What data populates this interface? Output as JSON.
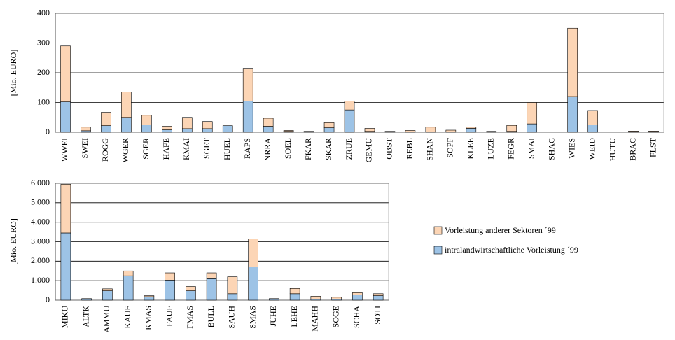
{
  "chart_data": [
    {
      "type": "stacked_bar",
      "ylabel": "[Mio. EURO]",
      "categories": [
        "WWEI",
        "SWEI",
        "ROGG",
        "WGER",
        "SGER",
        "HAFE",
        "KMAI",
        "SGET",
        "HUEL",
        "RAPS",
        "NRRA",
        "SOEL",
        "FKAR",
        "SKAR",
        "ZRUE",
        "GEMU",
        "OBST",
        "REBL",
        "SHAN",
        "SOPF",
        "KLEE",
        "LUZE",
        "FEGR",
        "SMAI",
        "SHAC",
        "WIES",
        "WEID",
        "HUTU",
        "BRAC",
        "FLST"
      ],
      "series": [
        {
          "color": "#9dc3e6",
          "values": [
            102,
            5,
            22,
            50,
            25,
            8,
            12,
            12,
            22,
            105,
            20,
            3,
            2,
            15,
            75,
            3,
            1,
            1,
            1,
            1,
            13,
            2,
            3,
            28,
            0,
            120,
            25,
            0,
            2,
            2
          ]
        },
        {
          "color": "#fcd5b5",
          "values": [
            188,
            12,
            45,
            85,
            32,
            12,
            38,
            24,
            0,
            110,
            27,
            3,
            1,
            17,
            30,
            10,
            2,
            5,
            16,
            6,
            4,
            1,
            20,
            72,
            0,
            230,
            48,
            0,
            2,
            2
          ]
        }
      ],
      "ylim": [
        0,
        400
      ],
      "yticks": [
        0,
        100,
        200,
        300,
        400
      ],
      "grid": true
    },
    {
      "type": "stacked_bar",
      "ylabel": "[Mio. EURO]",
      "categories": [
        "MIKU",
        "ALTK",
        "AMMU",
        "KAUF",
        "KMAS",
        "FAUF",
        "FMAS",
        "BULL",
        "SAUH",
        "SMAS",
        "JUHE",
        "LEHE",
        "MAHH",
        "SOGE",
        "SCHA",
        "SOTI"
      ],
      "series": [
        {
          "name": "intralandwirtschaftliche Vorleistung ´99",
          "color": "#9dc3e6",
          "values": [
            3450,
            50,
            480,
            1250,
            180,
            1030,
            480,
            1100,
            330,
            1700,
            50,
            330,
            60,
            50,
            270,
            230
          ]
        },
        {
          "name": "Vorleistung anderer Sektoren ´99",
          "color": "#fcd5b5",
          "values": [
            2500,
            30,
            100,
            250,
            50,
            370,
            220,
            300,
            870,
            1450,
            30,
            270,
            140,
            100,
            110,
            100
          ]
        }
      ],
      "ylim": [
        0,
        6000
      ],
      "yticks": [
        0,
        {
          "value": 1000,
          "label": "1.000"
        },
        {
          "value": 2000,
          "label": "2.000"
        },
        {
          "value": 3000,
          "label": "3.000"
        },
        {
          "value": 4000,
          "label": "4.000"
        },
        {
          "value": 5000,
          "label": "5.000"
        },
        {
          "value": 6000,
          "label": "6.000"
        }
      ],
      "grid": true
    }
  ]
}
